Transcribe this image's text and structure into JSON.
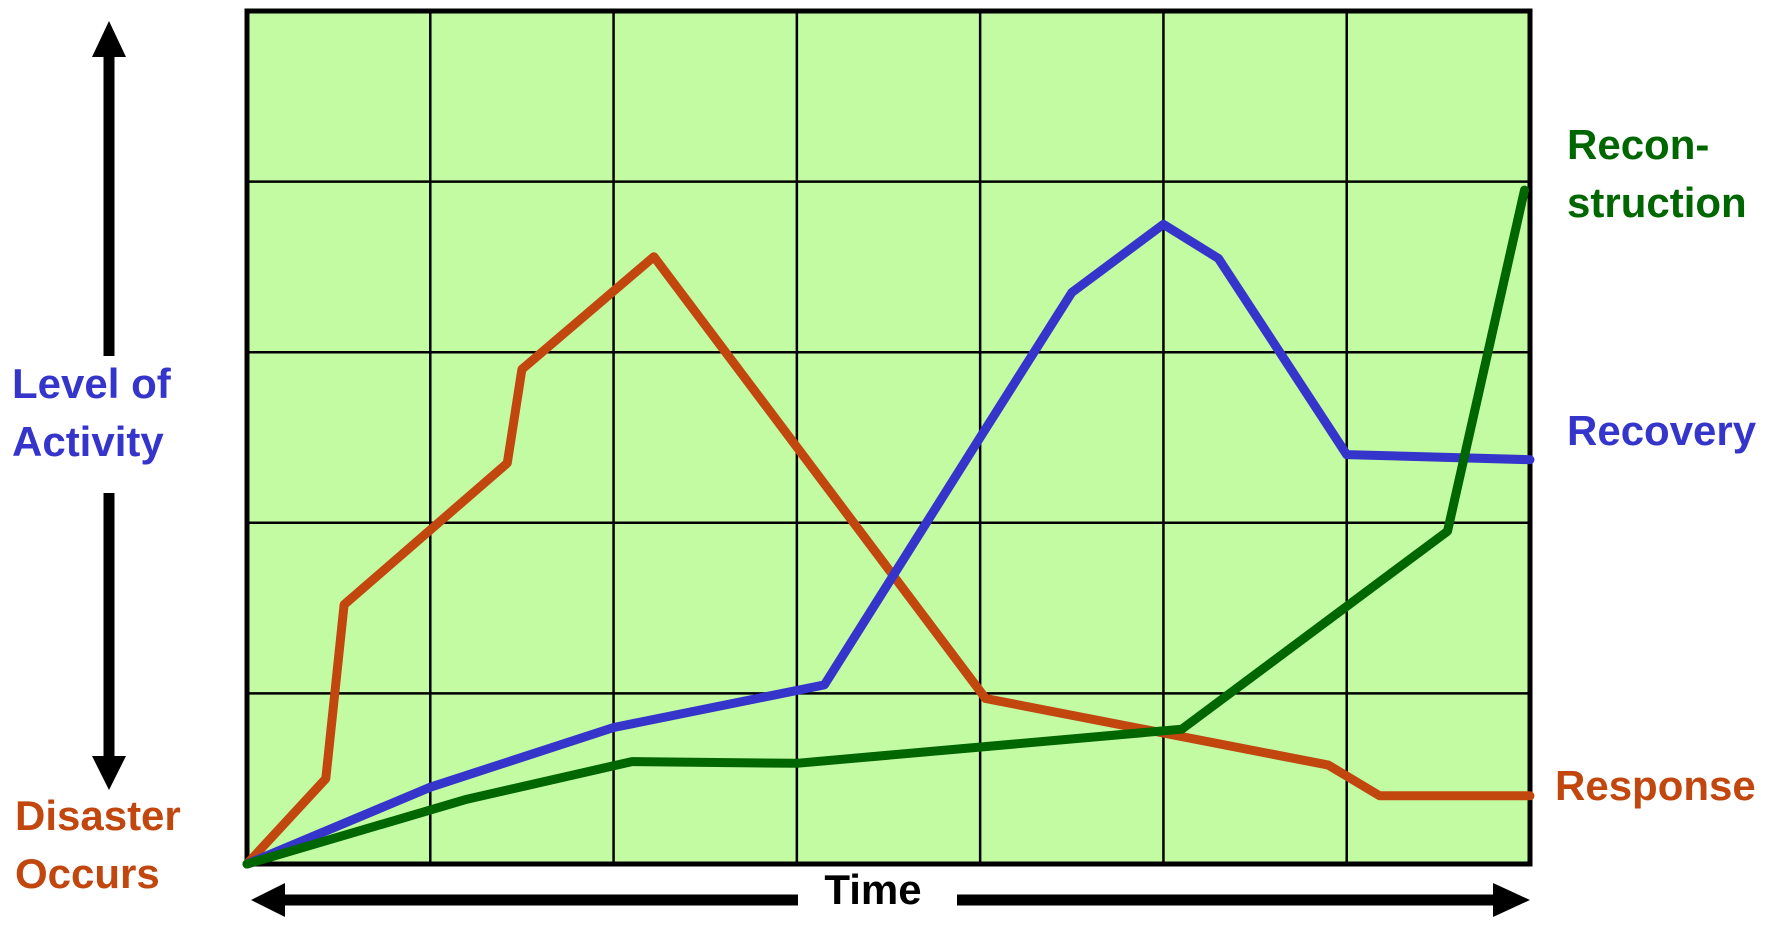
{
  "chart_data": {
    "type": "line",
    "xlabel": "Time",
    "ylabel": [
      "Level of",
      "Activity"
    ],
    "origin_label": [
      "Disaster",
      "Occurs"
    ],
    "grid": true,
    "grid_cols": 7,
    "grid_rows": 5,
    "xlim": [
      0,
      7
    ],
    "ylim": [
      0,
      5
    ],
    "plot_background": "#c3fba3",
    "series": [
      {
        "name": "Response",
        "label_lines": [
          "Response"
        ],
        "color": "#c1470f",
        "x": [
          0.0,
          0.43,
          0.53,
          1.42,
          1.5,
          2.22,
          4.03,
          5.9,
          6.18,
          7.0
        ],
        "y": [
          0.0,
          0.5,
          1.52,
          2.35,
          2.9,
          3.56,
          0.97,
          0.58,
          0.4,
          0.4
        ]
      },
      {
        "name": "Recovery",
        "label_lines": [
          "Recovery"
        ],
        "color": "#3535cc",
        "x": [
          0.0,
          1.0,
          2.0,
          3.15,
          4.0,
          4.5,
          5.0,
          5.3,
          6.0,
          7.0
        ],
        "y": [
          0.0,
          0.45,
          0.8,
          1.05,
          2.5,
          3.35,
          3.75,
          3.55,
          2.4,
          2.37
        ]
      },
      {
        "name": "Recon-\nstruction",
        "label_lines": [
          "Recon-",
          "struction"
        ],
        "color": "#006600",
        "x": [
          0.0,
          1.2,
          2.1,
          3.0,
          5.1,
          6.55,
          6.97
        ],
        "y": [
          0.0,
          0.38,
          0.6,
          0.59,
          0.79,
          1.95,
          3.95
        ]
      }
    ]
  }
}
